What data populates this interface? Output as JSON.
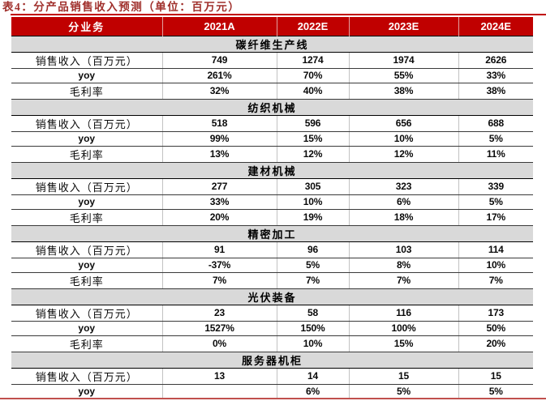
{
  "title": "表4：分产品销售收入预测（单位：百万元）",
  "colors": {
    "header_bg": "#C00000",
    "header_text": "#FFFFFF",
    "title_text": "#A0302C",
    "section_bg": "#D9D9D9",
    "accent_line": "#C00000"
  },
  "chart_data": {
    "type": "table",
    "title": "表4：分产品销售收入预测（单位：百万元）",
    "columns": [
      "分业务",
      "2021A",
      "2022E",
      "2023E",
      "2024E"
    ],
    "sections": [
      {
        "name": "碳纤维生产线",
        "rows": [
          {
            "label": "销售收入（百万元）",
            "values": [
              "749",
              "1274",
              "1974",
              "2626"
            ]
          },
          {
            "label": "yoy",
            "values": [
              "261%",
              "70%",
              "55%",
              "33%"
            ]
          },
          {
            "label": "毛利率",
            "values": [
              "32%",
              "40%",
              "38%",
              "38%"
            ]
          }
        ]
      },
      {
        "name": "纺织机械",
        "rows": [
          {
            "label": "销售收入（百万元）",
            "values": [
              "518",
              "596",
              "656",
              "688"
            ]
          },
          {
            "label": "yoy",
            "values": [
              "99%",
              "15%",
              "10%",
              "5%"
            ]
          },
          {
            "label": "毛利率",
            "values": [
              "13%",
              "12%",
              "12%",
              "11%"
            ]
          }
        ]
      },
      {
        "name": "建材机械",
        "rows": [
          {
            "label": "销售收入（百万元）",
            "values": [
              "277",
              "305",
              "323",
              "339"
            ]
          },
          {
            "label": "yoy",
            "values": [
              "33%",
              "10%",
              "6%",
              "5%"
            ]
          },
          {
            "label": "毛利率",
            "values": [
              "20%",
              "19%",
              "18%",
              "17%"
            ]
          }
        ]
      },
      {
        "name": "精密加工",
        "rows": [
          {
            "label": "销售收入（百万元）",
            "values": [
              "91",
              "96",
              "103",
              "114"
            ]
          },
          {
            "label": "yoy",
            "values": [
              "-37%",
              "5%",
              "8%",
              "10%"
            ]
          },
          {
            "label": "毛利率",
            "values": [
              "7%",
              "7%",
              "7%",
              "7%"
            ]
          }
        ]
      },
      {
        "name": "光伏装备",
        "rows": [
          {
            "label": "销售收入（百万元）",
            "values": [
              "23",
              "58",
              "116",
              "173"
            ]
          },
          {
            "label": "yoy",
            "values": [
              "1527%",
              "150%",
              "100%",
              "50%"
            ]
          },
          {
            "label": "毛利率",
            "values": [
              "0%",
              "10%",
              "15%",
              "20%"
            ]
          }
        ]
      },
      {
        "name": "服务器机柜",
        "rows": [
          {
            "label": "销售收入（百万元）",
            "values": [
              "13",
              "14",
              "15",
              "15"
            ]
          },
          {
            "label": "yoy",
            "values": [
              "",
              "6%",
              "5%",
              "5%"
            ]
          }
        ]
      }
    ]
  }
}
